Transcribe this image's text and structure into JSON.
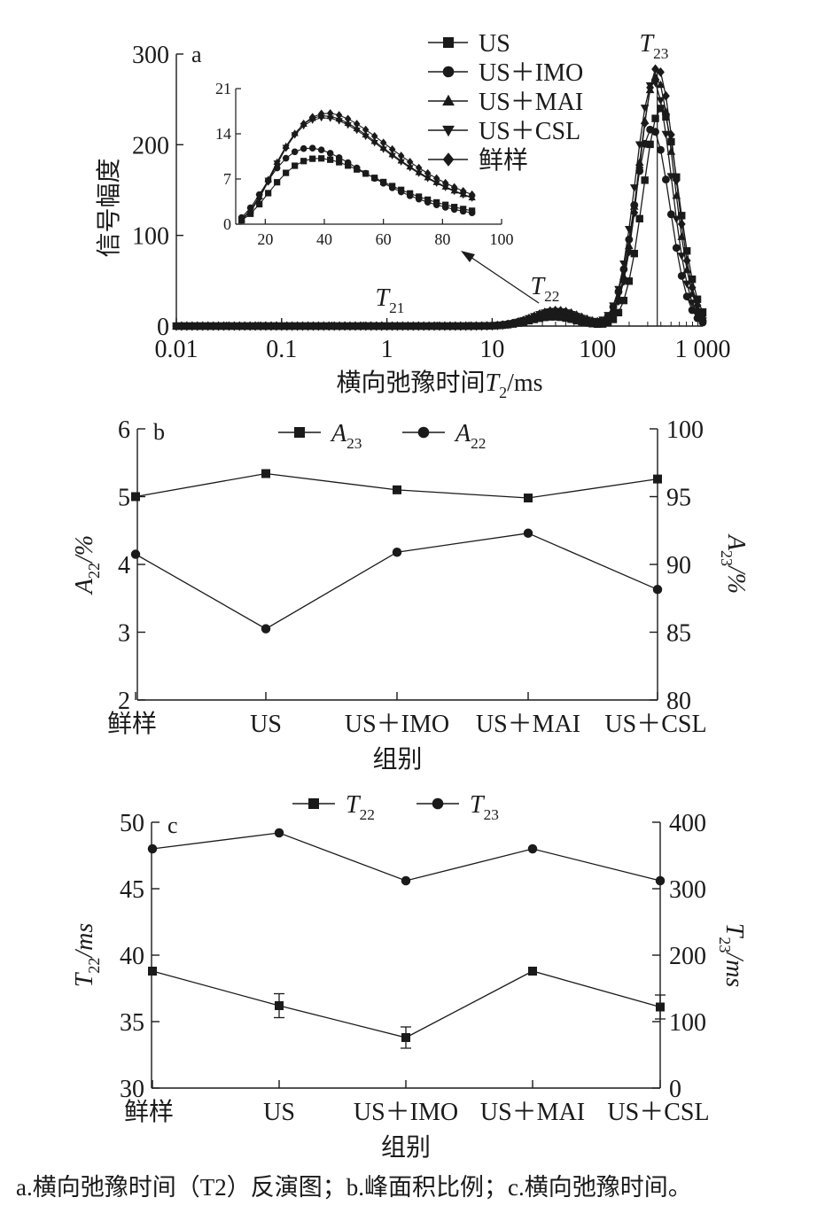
{
  "caption": "a.横向弛豫时间（T2）反演图；b.峰面积比例；c.横向弛豫时间。",
  "chart_data": [
    {
      "type": "line",
      "panel_label": "a",
      "xlabel": "横向弛豫时间T2/ms",
      "ylabel": "信号幅度",
      "xscale": "log",
      "xlim": [
        0.01,
        1000
      ],
      "ylim": [
        0,
        300
      ],
      "x_ticks": [
        "0.01",
        "0.1",
        "1",
        "10",
        "100",
        "1 000"
      ],
      "y_ticks": [
        "0",
        "100",
        "200",
        "300"
      ],
      "peak_labels": [
        "T21",
        "T22",
        "T23"
      ],
      "legend_position": "top-center",
      "series": [
        {
          "name": "US",
          "marker": "square",
          "peak_center_ms": 400,
          "peak_height": 240,
          "small_peak_center_ms": 38,
          "small_peak_height": 10.2
        },
        {
          "name": "US＋IMO",
          "marker": "circle",
          "peak_center_ms": 330,
          "peak_height": 218,
          "small_peak_center_ms": 35,
          "small_peak_height": 11.8
        },
        {
          "name": "US＋MAI",
          "marker": "triangle-up",
          "peak_center_ms": 360,
          "peak_height": 275,
          "small_peak_center_ms": 40,
          "small_peak_height": 16.8
        },
        {
          "name": "US＋CSL",
          "marker": "triangle-down",
          "peak_center_ms": 340,
          "peak_height": 270,
          "small_peak_center_ms": 40,
          "small_peak_height": 16.5
        },
        {
          "name": "鲜样",
          "marker": "diamond",
          "peak_center_ms": 370,
          "peak_height": 285,
          "small_peak_center_ms": 41,
          "small_peak_height": 17.2
        }
      ],
      "inset": {
        "xlim": [
          10,
          100
        ],
        "ylim": [
          0,
          21
        ],
        "x_ticks": [
          "20",
          "40",
          "60",
          "80",
          "100"
        ],
        "y_ticks": [
          "0",
          "7",
          "14",
          "21"
        ]
      }
    },
    {
      "type": "line",
      "panel_label": "b",
      "xlabel": "组别",
      "ylabel_left": "A22/%",
      "ylabel_right": "A23/%",
      "categories": [
        "鲜样",
        "US",
        "US＋IMO",
        "US＋MAI",
        "US＋CSL"
      ],
      "ylim_left": [
        2,
        6
      ],
      "ylim_right": [
        80,
        100
      ],
      "y_ticks_left": [
        "2",
        "3",
        "4",
        "5",
        "6"
      ],
      "y_ticks_right": [
        "80",
        "85",
        "90",
        "95",
        "100"
      ],
      "series": [
        {
          "name": "A23",
          "axis": "right",
          "marker": "square",
          "values": [
            95.0,
            96.7,
            95.5,
            94.9,
            96.3
          ]
        },
        {
          "name": "A22",
          "axis": "left",
          "marker": "circle",
          "values": [
            4.15,
            3.05,
            4.18,
            4.46,
            3.63
          ]
        }
      ]
    },
    {
      "type": "line",
      "panel_label": "c",
      "xlabel": "组别",
      "ylabel_left": "T22/ms",
      "ylabel_right": "T23/ms",
      "categories": [
        "鲜样",
        "US",
        "US＋IMO",
        "US＋MAI",
        "US＋CSL"
      ],
      "ylim_left": [
        30,
        50
      ],
      "ylim_right": [
        0,
        400
      ],
      "y_ticks_left": [
        "30",
        "35",
        "40",
        "45",
        "50"
      ],
      "y_ticks_right": [
        "0",
        "100",
        "200",
        "300",
        "400"
      ],
      "series": [
        {
          "name": "T22",
          "axis": "left",
          "marker": "square",
          "values": [
            38.8,
            36.2,
            33.8,
            38.8,
            36.1
          ],
          "errors": [
            0,
            0.9,
            0.8,
            0,
            0.9
          ]
        },
        {
          "name": "T23",
          "axis": "right",
          "marker": "circle",
          "values": [
            360,
            384,
            312,
            360,
            312
          ]
        }
      ]
    }
  ]
}
